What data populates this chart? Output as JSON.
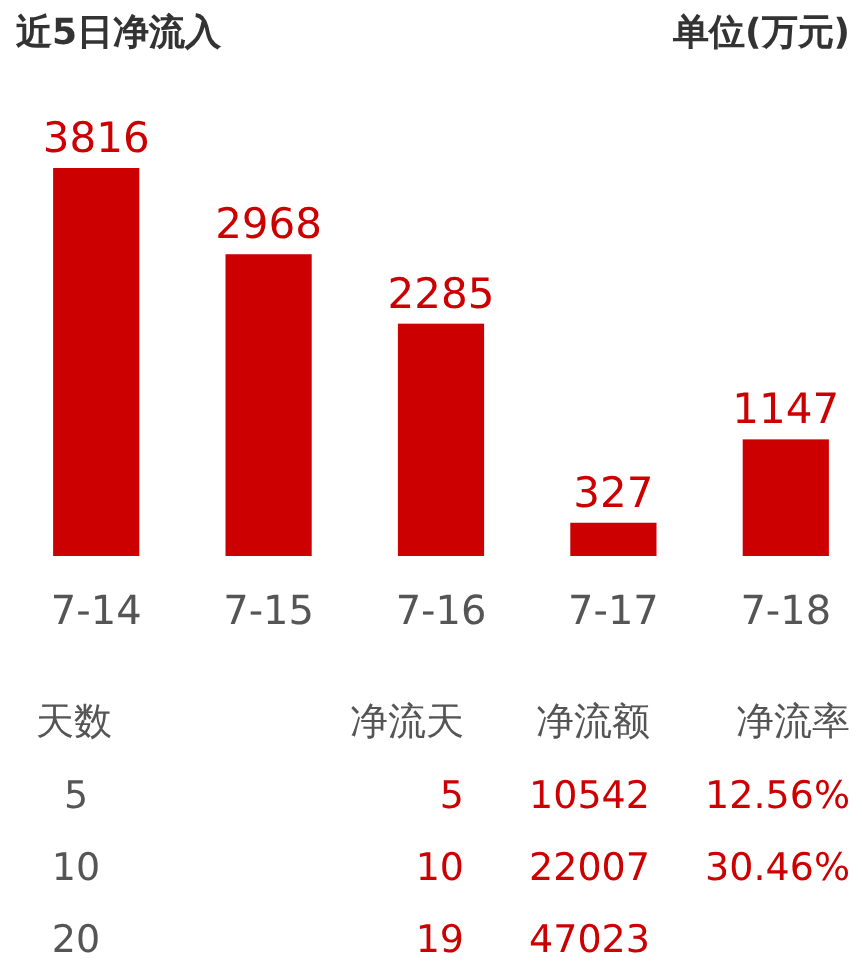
{
  "chart_data": [
    {
      "type": "bar",
      "title": "近5日净流入",
      "subtitle": "单位(万元)",
      "categories": [
        "7-14",
        "7-15",
        "7-16",
        "7-17",
        "7-18"
      ],
      "values": [
        3816,
        2968,
        2285,
        327,
        1147
      ],
      "color": "#cc0000",
      "data_labels": true,
      "grid": false
    },
    {
      "type": "other",
      "categories": [
        "天数",
        "净流天",
        "净流额",
        "净流率"
      ],
      "colors": [
        "#555555",
        "#cc0000",
        "#cc0000",
        "#cc0000"
      ],
      "cell_labels": [
        [
          "5",
          "5",
          "10542",
          "12.56%"
        ],
        [
          "10",
          "10",
          "22007",
          "30.46%"
        ],
        [
          "20",
          "19",
          "47023",
          null
        ]
      ]
    }
  ]
}
